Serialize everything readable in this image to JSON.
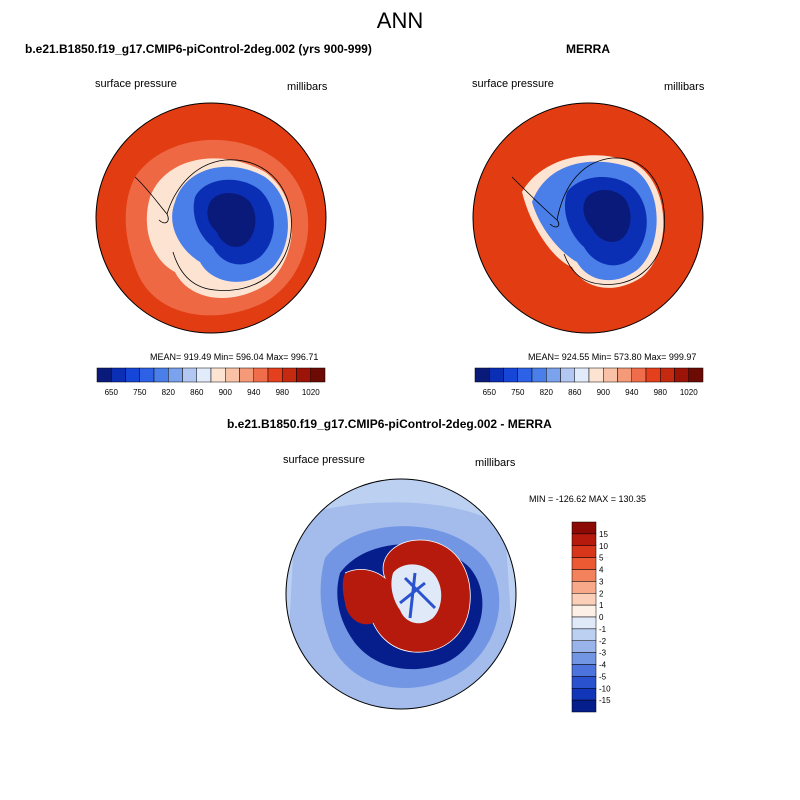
{
  "main_title": "ANN",
  "panels": [
    {
      "title": "b.e21.B1850.f19_g17.CMIP6-piControl-2deg.002 (yrs 900-999)",
      "left_label": "surface pressure",
      "right_label": "millibars",
      "stats": "MEAN= 919.49  Min= 596.04  Max= 996.71"
    },
    {
      "title": "MERRA",
      "left_label": "surface pressure",
      "right_label": "millibars",
      "stats": "MEAN= 924.55  Min= 573.80  Max= 999.97"
    },
    {
      "title": "b.e21.B1850.f19_g17.CMIP6-piControl-2deg.002 - MERRA",
      "left_label": "surface pressure",
      "right_label": "millibars",
      "stats": "MIN = -126.62 MAX = 130.35"
    }
  ],
  "chart_data": [
    {
      "type": "heatmap",
      "projection": "south polar stereographic",
      "variable": "surface pressure",
      "units": "millibars",
      "colorbar_orientation": "horizontal",
      "colorbar_levels": [
        650,
        700,
        750,
        800,
        820,
        840,
        860,
        880,
        900,
        920,
        940,
        960,
        980,
        1000,
        1020
      ],
      "colorbar_tick_labels": [
        "650",
        "750",
        "820",
        "860",
        "900",
        "940",
        "980",
        "1020"
      ],
      "colorbar_colors": [
        "#0a1a7a",
        "#0b2fb4",
        "#1646d8",
        "#2d62e6",
        "#4a7ee8",
        "#7ba2ec",
        "#b2c8f2",
        "#e2ebfa",
        "#fde4d2",
        "#f9c2a6",
        "#f59a78",
        "#ef6d4a",
        "#e4401d",
        "#c42a10",
        "#9c1408",
        "#6c0a04"
      ],
      "mean": 919.49,
      "min": 596.04,
      "max": 996.71
    },
    {
      "type": "heatmap",
      "projection": "south polar stereographic",
      "variable": "surface pressure",
      "units": "millibars",
      "colorbar_orientation": "horizontal",
      "colorbar_levels": [
        650,
        700,
        750,
        800,
        820,
        840,
        860,
        880,
        900,
        920,
        940,
        960,
        980,
        1000,
        1020
      ],
      "colorbar_tick_labels": [
        "650",
        "750",
        "820",
        "860",
        "900",
        "940",
        "980",
        "1020"
      ],
      "colorbar_colors": [
        "#0a1a7a",
        "#0b2fb4",
        "#1646d8",
        "#2d62e6",
        "#4a7ee8",
        "#7ba2ec",
        "#b2c8f2",
        "#e2ebfa",
        "#fde4d2",
        "#f9c2a6",
        "#f59a78",
        "#ef6d4a",
        "#e4401d",
        "#c42a10",
        "#9c1408",
        "#6c0a04"
      ],
      "mean": 924.55,
      "min": 573.8,
      "max": 999.97
    },
    {
      "type": "heatmap",
      "projection": "south polar stereographic",
      "variable": "surface pressure difference",
      "units": "millibars",
      "colorbar_orientation": "vertical",
      "colorbar_levels": [
        15,
        10,
        5,
        4,
        3,
        2,
        1,
        0,
        -1,
        -2,
        -3,
        -4,
        -5,
        -10,
        -15
      ],
      "colorbar_tick_labels": [
        "15",
        "10",
        "5",
        "4",
        "3",
        "2",
        "1",
        "0",
        "-1",
        "-2",
        "-3",
        "-4",
        "-5",
        "-10",
        "-15"
      ],
      "colorbar_colors": [
        "#8b0a06",
        "#b51a0c",
        "#d7361a",
        "#ec5a33",
        "#f3825c",
        "#f7a98a",
        "#fbcfb8",
        "#fdf0e6",
        "#dfe9f7",
        "#bcd0f1",
        "#98b4ea",
        "#7396e4",
        "#4c74dc",
        "#2a52cf",
        "#1236b8",
        "#061e8c"
      ],
      "min": -126.62,
      "max": 130.35
    }
  ]
}
